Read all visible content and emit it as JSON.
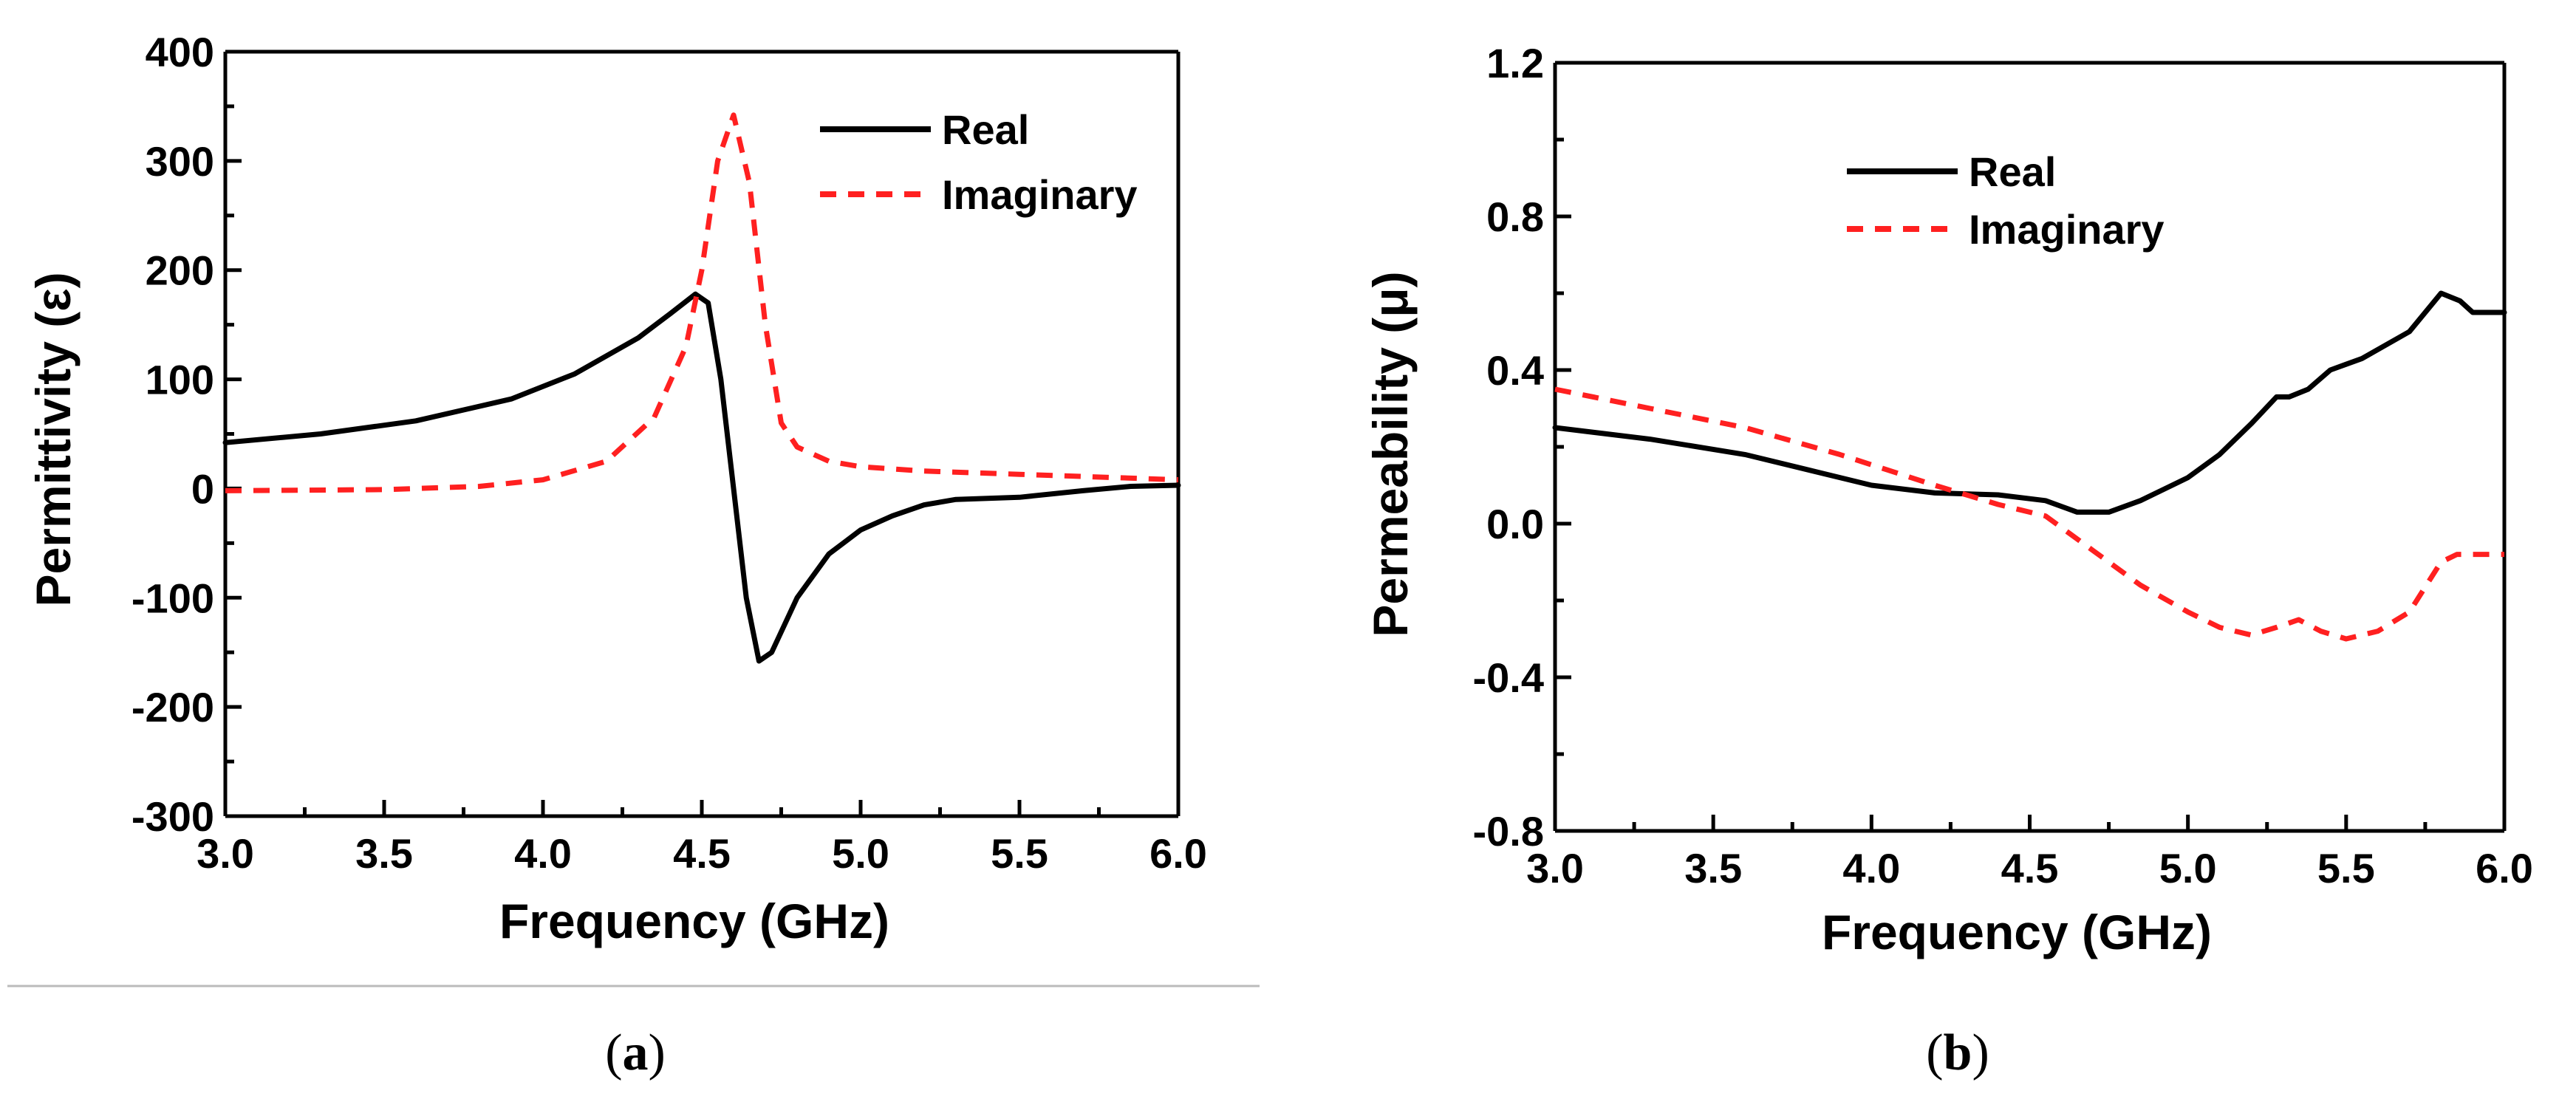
{
  "chart_data": [
    {
      "type": "line",
      "panel": "a",
      "caption_letter": "a",
      "title": "",
      "xlabel": "Frequency (GHz)",
      "ylabel": "Permittivity (ε)",
      "xlim": [
        3.0,
        6.0
      ],
      "ylim": [
        -300,
        400
      ],
      "xticks": [
        "3.0",
        "3.5",
        "4.0",
        "4.5",
        "5.0",
        "5.5",
        "6.0"
      ],
      "yticks": [
        "-300",
        "-200",
        "-100",
        "0",
        "100",
        "200",
        "300",
        "400"
      ],
      "legend_position": "top-right",
      "series": [
        {
          "name": "Real",
          "color": "#000000",
          "dash": "solid",
          "x": [
            3.0,
            3.3,
            3.6,
            3.9,
            4.1,
            4.3,
            4.4,
            4.48,
            4.52,
            4.56,
            4.6,
            4.64,
            4.68,
            4.72,
            4.8,
            4.9,
            5.0,
            5.1,
            5.2,
            5.3,
            5.5,
            5.7,
            5.85,
            6.0
          ],
          "y": [
            42,
            50,
            62,
            82,
            105,
            138,
            160,
            178,
            170,
            100,
            0,
            -100,
            -158,
            -150,
            -100,
            -60,
            -38,
            -25,
            -15,
            -10,
            -8,
            -2,
            2,
            3
          ]
        },
        {
          "name": "Imaginary",
          "color": "#ff2020",
          "dash": "dashed",
          "x": [
            3.0,
            3.5,
            3.8,
            4.0,
            4.2,
            4.35,
            4.45,
            4.5,
            4.55,
            4.6,
            4.65,
            4.7,
            4.75,
            4.8,
            4.9,
            5.0,
            5.2,
            5.5,
            5.8,
            6.0
          ],
          "y": [
            -2,
            -1,
            2,
            8,
            25,
            65,
            130,
            200,
            300,
            342,
            280,
            150,
            60,
            38,
            25,
            20,
            16,
            13,
            10,
            8
          ]
        }
      ]
    },
    {
      "type": "line",
      "panel": "b",
      "caption_letter": "b",
      "title": "",
      "xlabel": "Frequency (GHz)",
      "ylabel": "Permeability (μ)",
      "xlim": [
        3.0,
        6.0
      ],
      "ylim": [
        -0.8,
        1.2
      ],
      "xticks": [
        "3.0",
        "3.5",
        "4.0",
        "4.5",
        "5.0",
        "5.5",
        "6.0"
      ],
      "yticks": [
        "-0.8",
        "-0.4",
        "0.0",
        "0.4",
        "0.8",
        "1.2"
      ],
      "legend_position": "top-left",
      "series": [
        {
          "name": "Real",
          "color": "#000000",
          "dash": "solid",
          "x": [
            3.0,
            3.3,
            3.6,
            3.8,
            4.0,
            4.2,
            4.4,
            4.55,
            4.65,
            4.75,
            4.85,
            5.0,
            5.1,
            5.2,
            5.28,
            5.32,
            5.38,
            5.45,
            5.55,
            5.7,
            5.8,
            5.86,
            5.9,
            5.95,
            6.0
          ],
          "y": [
            0.25,
            0.22,
            0.18,
            0.14,
            0.1,
            0.08,
            0.075,
            0.06,
            0.03,
            0.03,
            0.06,
            0.12,
            0.18,
            0.26,
            0.33,
            0.33,
            0.35,
            0.4,
            0.43,
            0.5,
            0.6,
            0.58,
            0.55,
            0.55,
            0.55
          ],
          "legend_label": "Real"
        },
        {
          "name": "Imaginary",
          "color": "#ff2020",
          "dash": "dashed",
          "x": [
            3.0,
            3.3,
            3.6,
            3.9,
            4.2,
            4.4,
            4.55,
            4.7,
            4.85,
            5.0,
            5.1,
            5.2,
            5.28,
            5.35,
            5.42,
            5.5,
            5.6,
            5.7,
            5.8,
            5.85,
            5.9,
            6.0
          ],
          "y": [
            0.35,
            0.3,
            0.25,
            0.18,
            0.1,
            0.05,
            0.02,
            -0.07,
            -0.16,
            -0.23,
            -0.27,
            -0.29,
            -0.27,
            -0.25,
            -0.28,
            -0.3,
            -0.28,
            -0.23,
            -0.1,
            -0.08,
            -0.08,
            -0.08
          ]
        }
      ]
    }
  ]
}
